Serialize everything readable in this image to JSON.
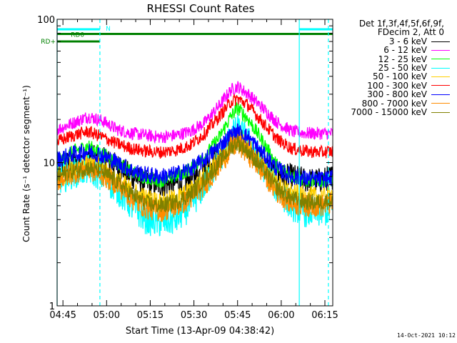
{
  "chart_data": {
    "type": "line",
    "title": "RHESSI Count Rates",
    "xlabel": "Start Time (13-Apr-09 04:38:42)",
    "ylabel": "Count Rate (s⁻¹ detector segment⁻¹)",
    "yscale": "log",
    "ylim": [
      1,
      100
    ],
    "xlim_minutes": [
      4.3,
      99.0
    ],
    "x_ticks": [
      {
        "label": "04:45",
        "minutes": 6.3
      },
      {
        "label": "05:00",
        "minutes": 21.3
      },
      {
        "label": "05:15",
        "minutes": 36.3
      },
      {
        "label": "05:30",
        "minutes": 51.3
      },
      {
        "label": "05:45",
        "minutes": 66.3
      },
      {
        "label": "06:00",
        "minutes": 81.3
      },
      {
        "label": "06:15",
        "minutes": 96.3
      }
    ],
    "y_tick_labels": [
      "1",
      "10",
      "100"
    ],
    "legend": {
      "header": [
        "Det 1f,3f,4f,5f,6f,9f,",
        "FDecim 2, Att 0"
      ],
      "placement": "outside-right"
    },
    "series": [
      {
        "name": "3 - 6 keV",
        "color": "#000000",
        "x": [
          4.3,
          10,
          15,
          20,
          25,
          30,
          35,
          40,
          45,
          50,
          55,
          60,
          64,
          66.3,
          70,
          75,
          80,
          85,
          90,
          95,
          99
        ],
        "y": [
          9.5,
          10,
          11,
          10.5,
          9.5,
          8,
          7.2,
          7,
          7.2,
          7.5,
          9,
          11.5,
          14,
          15,
          13,
          10,
          8,
          8,
          7.5,
          7.5,
          8
        ]
      },
      {
        "name": "6 - 12 keV",
        "color": "#ff00ff",
        "x": [
          4.3,
          10,
          15,
          20,
          25,
          30,
          35,
          40,
          45,
          50,
          55,
          60,
          64,
          66.3,
          70,
          75,
          80,
          85,
          90,
          95,
          99
        ],
        "y": [
          17,
          19,
          21,
          19.5,
          17,
          16,
          15.5,
          15,
          15.5,
          16.5,
          19,
          25,
          32,
          34,
          30,
          24,
          19,
          16.5,
          16,
          16,
          16
        ]
      },
      {
        "name": "12 - 25 keV",
        "color": "#00ff00",
        "x": [
          4.3,
          10,
          15,
          20,
          25,
          30,
          35,
          40,
          45,
          50,
          55,
          60,
          64,
          66.3,
          70,
          75,
          80,
          85,
          90,
          95,
          99
        ],
        "y": [
          10,
          12,
          13,
          11.5,
          10,
          8.5,
          7.8,
          7.5,
          8,
          9,
          11,
          15,
          21,
          24,
          20,
          14,
          9.5,
          8,
          7.5,
          7.5,
          7.5
        ]
      },
      {
        "name": "25 - 50 keV",
        "color": "#00ffff",
        "x": [
          4.3,
          10,
          15,
          20,
          25,
          30,
          35,
          40,
          45,
          50,
          55,
          60,
          64,
          66.3,
          70,
          75,
          80,
          85,
          90,
          95,
          99
        ],
        "y": [
          7.5,
          8.5,
          9,
          8,
          6.5,
          5,
          4,
          3.8,
          4,
          5,
          7,
          10.5,
          15,
          17,
          14,
          9.5,
          6.5,
          5,
          4.5,
          4.5,
          4.7
        ]
      },
      {
        "name": "50 - 100 keV",
        "color": "#ffd000",
        "x": [
          4.3,
          10,
          15,
          20,
          25,
          30,
          35,
          40,
          45,
          50,
          55,
          60,
          64,
          66.3,
          70,
          75,
          80,
          85,
          90,
          95,
          99
        ],
        "y": [
          8,
          9,
          9.5,
          9,
          7.5,
          6.2,
          5.5,
          5.2,
          5.5,
          6.2,
          8,
          10.5,
          13.5,
          14.5,
          12.5,
          9.5,
          7,
          6,
          5.7,
          5.7,
          6
        ]
      },
      {
        "name": "100 - 300 keV",
        "color": "#ff0000",
        "x": [
          4.3,
          10,
          15,
          20,
          25,
          30,
          35,
          40,
          45,
          50,
          55,
          60,
          64,
          66.3,
          70,
          75,
          80,
          85,
          90,
          95,
          99
        ],
        "y": [
          14,
          15.5,
          16.5,
          15,
          13.5,
          12.5,
          12,
          11.8,
          12.2,
          13.2,
          16,
          21,
          26.5,
          28,
          25,
          19,
          14.5,
          12.5,
          12,
          11.8,
          12
        ]
      },
      {
        "name": "300 - 800 keV",
        "color": "#0000ff",
        "x": [
          4.3,
          10,
          15,
          20,
          25,
          30,
          35,
          40,
          45,
          50,
          55,
          60,
          64,
          66.3,
          70,
          75,
          80,
          85,
          90,
          95,
          99
        ],
        "y": [
          10.5,
          11.5,
          12,
          11.2,
          10,
          8.8,
          8.2,
          8,
          8.3,
          9,
          10.5,
          13,
          15.5,
          16.5,
          15,
          11.5,
          9,
          8,
          7.7,
          7.6,
          7.8
        ]
      },
      {
        "name": "800 - 7000 keV",
        "color": "#ff8c00",
        "x": [
          4.3,
          10,
          15,
          20,
          25,
          30,
          35,
          40,
          45,
          50,
          55,
          60,
          64,
          66.3,
          70,
          75,
          80,
          85,
          90,
          95,
          99
        ],
        "y": [
          7.5,
          8.5,
          9,
          8.2,
          7,
          5.6,
          4.8,
          4.6,
          4.9,
          5.6,
          7,
          9.5,
          12.5,
          13.5,
          11.5,
          8.5,
          6.2,
          5.2,
          5,
          5,
          5.2
        ]
      },
      {
        "name": "7000 - 15000 keV",
        "color": "#808000",
        "x": [
          4.3,
          10,
          15,
          20,
          25,
          30,
          35,
          40,
          45,
          50,
          55,
          60,
          64,
          66.3,
          70,
          75,
          80,
          85,
          90,
          95,
          99
        ],
        "y": [
          8,
          8.8,
          9.2,
          8.6,
          7.3,
          6,
          5.2,
          5,
          5.3,
          6,
          7.6,
          10,
          12.8,
          13.8,
          12,
          9,
          6.6,
          5.6,
          5.3,
          5.3,
          5.5
        ]
      }
    ],
    "state_bars": [
      {
        "label": "N",
        "color": "#00ffff",
        "row": "top",
        "segments": [
          [
            4.3,
            19
          ],
          [
            87.5,
            99
          ]
        ],
        "label_at": 21
      },
      {
        "label": "RD0",
        "color": "#008000",
        "row": "mid",
        "segments": [
          [
            4.3,
            19
          ],
          [
            19,
            99
          ]
        ],
        "label_at": 9
      },
      {
        "label": "RD+",
        "color": "#008000",
        "row": "low",
        "segments": [
          [
            4.3,
            19
          ]
        ],
        "label_at": -2
      }
    ],
    "vlines_solid": [
      4.3,
      87.5
    ],
    "vlines_dashed": [
      19,
      97.5
    ]
  },
  "timestamp": "14-Oct-2021 10:12"
}
